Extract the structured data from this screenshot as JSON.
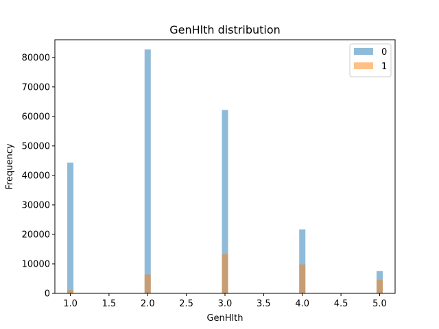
{
  "chart_data": {
    "type": "bar",
    "title": "GenHlth distribution",
    "xlabel": "GenHlth",
    "ylabel": "Frequency",
    "xlim": [
      0.8,
      5.2
    ],
    "ylim": [
      0,
      86000
    ],
    "x_ticks": [
      "1.0",
      "1.5",
      "2.0",
      "2.5",
      "3.0",
      "3.5",
      "4.0",
      "4.5",
      "5.0"
    ],
    "y_ticks": [
      "0",
      "10000",
      "20000",
      "30000",
      "40000",
      "50000",
      "60000",
      "70000",
      "80000"
    ],
    "legend_position": "top-right",
    "categories": [
      1,
      2,
      3,
      4,
      5
    ],
    "series": [
      {
        "name": "0",
        "color": "#1f77b4",
        "values": [
          44300,
          82700,
          62200,
          21700,
          7600
        ]
      },
      {
        "name": "1",
        "color": "#ff7f0e",
        "values": [
          1100,
          6400,
          13300,
          9800,
          4600
        ]
      }
    ]
  }
}
